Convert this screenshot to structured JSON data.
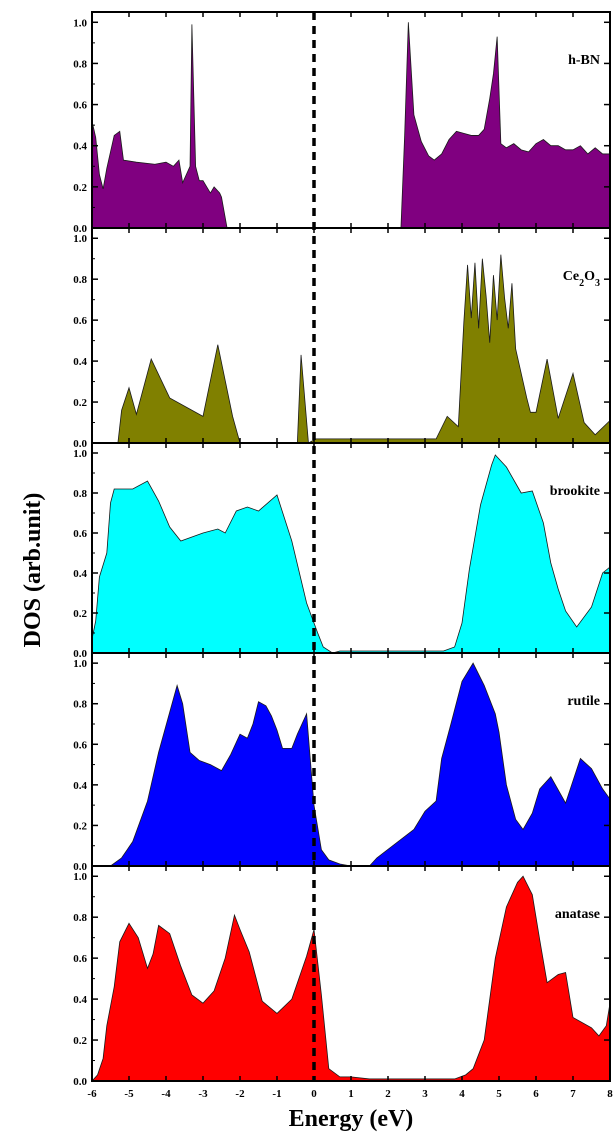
{
  "chart_data": {
    "type": "area",
    "xlabel": "Energy (eV)",
    "ylabel": "DOS (arb.unit)",
    "xlim": [
      -6,
      8
    ],
    "ylim": [
      0,
      1.05
    ],
    "xticks": [
      "-6",
      "-5",
      "-4",
      "-3",
      "-2",
      "-1",
      "0",
      "1",
      "2",
      "3",
      "4",
      "5",
      "6",
      "7",
      "8"
    ],
    "yticks": [
      "0.0",
      "0.2",
      "0.4",
      "0.6",
      "0.8",
      "1.0"
    ],
    "fermi_level": 0,
    "panels": [
      {
        "label": "h-BN",
        "label_base": "h-BN",
        "label_sub": "",
        "label_rest": "",
        "color": "#800080",
        "x": [
          -6.0,
          -5.9,
          -5.8,
          -5.7,
          -5.6,
          -5.4,
          -5.25,
          -5.15,
          -4.8,
          -4.3,
          -4.0,
          -3.8,
          -3.65,
          -3.55,
          -3.35,
          -3.3,
          -3.2,
          -3.1,
          -3.0,
          -2.8,
          -2.7,
          -2.55,
          -2.5,
          -2.35,
          2.35,
          2.45,
          2.55,
          2.7,
          2.9,
          3.1,
          3.25,
          3.45,
          3.65,
          3.85,
          4.05,
          4.25,
          4.45,
          4.6,
          4.75,
          4.85,
          4.95,
          5.05,
          5.2,
          5.4,
          5.6,
          5.8,
          6.0,
          6.2,
          6.4,
          6.6,
          6.8,
          7.0,
          7.2,
          7.4,
          7.6,
          7.8,
          8.0
        ],
        "y": [
          0.52,
          0.44,
          0.26,
          0.19,
          0.29,
          0.45,
          0.47,
          0.33,
          0.32,
          0.31,
          0.32,
          0.3,
          0.33,
          0.22,
          0.3,
          0.99,
          0.3,
          0.23,
          0.23,
          0.17,
          0.2,
          0.17,
          0.15,
          0.0,
          0.0,
          0.45,
          1.0,
          0.55,
          0.42,
          0.35,
          0.33,
          0.36,
          0.43,
          0.47,
          0.46,
          0.45,
          0.45,
          0.48,
          0.63,
          0.75,
          0.93,
          0.41,
          0.39,
          0.41,
          0.38,
          0.37,
          0.41,
          0.43,
          0.4,
          0.4,
          0.38,
          0.38,
          0.4,
          0.36,
          0.39,
          0.36,
          0.36
        ],
        "label_pos": "top-right"
      },
      {
        "label": "Ce2O3",
        "label_base": "Ce",
        "label_sub": "2",
        "label_rest": "O",
        "label_sub2": "3",
        "color": "#808000",
        "x": [
          -6.0,
          -5.3,
          -5.2,
          -5.0,
          -4.8,
          -4.4,
          -3.9,
          -3.0,
          -2.6,
          -2.2,
          -2.0,
          -0.45,
          -0.35,
          -0.15,
          0.05,
          3.3,
          3.6,
          3.9,
          4.05,
          4.15,
          4.25,
          4.35,
          4.45,
          4.55,
          4.65,
          4.75,
          4.85,
          4.95,
          5.05,
          5.15,
          5.25,
          5.35,
          5.45,
          5.55,
          5.65,
          5.75,
          5.85,
          6.0,
          6.3,
          6.6,
          7.0,
          7.3,
          7.6,
          8.0
        ],
        "y": [
          0.0,
          0.0,
          0.16,
          0.27,
          0.14,
          0.41,
          0.22,
          0.13,
          0.48,
          0.13,
          0.0,
          0.0,
          0.43,
          0.0,
          0.02,
          0.02,
          0.13,
          0.08,
          0.59,
          0.87,
          0.61,
          0.88,
          0.56,
          0.9,
          0.72,
          0.49,
          0.82,
          0.6,
          0.92,
          0.71,
          0.56,
          0.78,
          0.46,
          0.38,
          0.3,
          0.22,
          0.15,
          0.15,
          0.41,
          0.12,
          0.34,
          0.1,
          0.04,
          0.11
        ],
        "label_pos": "top-right"
      },
      {
        "label": "brookite",
        "label_base": "brookite",
        "label_sub": "",
        "label_rest": "",
        "color": "#00ffff",
        "x": [
          -6.0,
          -5.9,
          -5.8,
          -5.6,
          -5.5,
          -5.4,
          -5.2,
          -4.9,
          -4.5,
          -4.2,
          -3.9,
          -3.6,
          -3.0,
          -2.6,
          -2.4,
          -2.1,
          -1.8,
          -1.5,
          -1.0,
          -0.6,
          -0.2,
          0.1,
          0.25,
          0.5,
          0.7,
          1.0,
          1.5,
          2.0,
          2.5,
          3.0,
          3.5,
          3.8,
          4.0,
          4.2,
          4.5,
          4.8,
          4.9,
          5.2,
          5.6,
          5.9,
          6.2,
          6.4,
          6.6,
          6.8,
          7.1,
          7.5,
          7.8,
          8.0
        ],
        "y": [
          0.07,
          0.16,
          0.38,
          0.5,
          0.75,
          0.82,
          0.82,
          0.82,
          0.86,
          0.76,
          0.63,
          0.56,
          0.6,
          0.62,
          0.6,
          0.71,
          0.73,
          0.71,
          0.79,
          0.56,
          0.25,
          0.1,
          0.03,
          0.0,
          0.01,
          0.01,
          0.01,
          0.01,
          0.01,
          0.01,
          0.01,
          0.03,
          0.15,
          0.42,
          0.74,
          0.94,
          0.99,
          0.93,
          0.8,
          0.81,
          0.65,
          0.45,
          0.32,
          0.21,
          0.13,
          0.23,
          0.4,
          0.43
        ],
        "label_pos": "top-right"
      },
      {
        "label": "rutile",
        "label_base": "rutile",
        "label_sub": "",
        "label_rest": "",
        "color": "#0000ff",
        "x": [
          -6.0,
          -5.5,
          -5.2,
          -4.9,
          -4.5,
          -4.2,
          -3.7,
          -3.55,
          -3.35,
          -3.1,
          -2.8,
          -2.5,
          -2.25,
          -2.0,
          -1.8,
          -1.65,
          -1.5,
          -1.3,
          -1.15,
          -1.0,
          -0.85,
          -0.6,
          -0.45,
          -0.2,
          0.0,
          0.2,
          0.4,
          0.7,
          1.0,
          1.5,
          1.7,
          2.2,
          2.7,
          3.0,
          3.3,
          3.45,
          3.7,
          4.0,
          4.3,
          4.6,
          4.9,
          5.0,
          5.2,
          5.45,
          5.65,
          5.9,
          6.1,
          6.4,
          6.8,
          7.2,
          7.5,
          7.8,
          8.0
        ],
        "y": [
          0.0,
          0.0,
          0.04,
          0.12,
          0.32,
          0.56,
          0.89,
          0.8,
          0.56,
          0.52,
          0.5,
          0.47,
          0.55,
          0.65,
          0.63,
          0.7,
          0.81,
          0.79,
          0.74,
          0.67,
          0.58,
          0.58,
          0.65,
          0.75,
          0.3,
          0.08,
          0.03,
          0.01,
          0.0,
          0.0,
          0.04,
          0.11,
          0.18,
          0.27,
          0.32,
          0.53,
          0.7,
          0.91,
          1.0,
          0.89,
          0.75,
          0.66,
          0.4,
          0.23,
          0.18,
          0.26,
          0.38,
          0.44,
          0.31,
          0.53,
          0.48,
          0.38,
          0.33
        ],
        "label_pos": "top-right"
      },
      {
        "label": "anatase",
        "label_base": "anatase",
        "label_sub": "",
        "label_rest": "",
        "color": "#ff0000",
        "x": [
          -6.0,
          -5.85,
          -5.7,
          -5.6,
          -5.4,
          -5.25,
          -5.0,
          -4.75,
          -4.5,
          -4.35,
          -4.2,
          -3.9,
          -3.6,
          -3.3,
          -3.0,
          -2.7,
          -2.4,
          -2.15,
          -2.0,
          -1.75,
          -1.4,
          -1.0,
          -0.6,
          -0.2,
          0.0,
          0.2,
          0.4,
          0.7,
          1.0,
          1.5,
          2.0,
          2.5,
          3.0,
          3.5,
          3.8,
          4.1,
          4.3,
          4.6,
          4.9,
          5.2,
          5.5,
          5.65,
          5.9,
          6.1,
          6.3,
          6.6,
          6.8,
          7.0,
          7.5,
          7.7,
          7.9,
          8.0
        ],
        "y": [
          0.0,
          0.03,
          0.11,
          0.27,
          0.46,
          0.68,
          0.77,
          0.7,
          0.55,
          0.62,
          0.76,
          0.72,
          0.56,
          0.42,
          0.38,
          0.44,
          0.6,
          0.81,
          0.74,
          0.63,
          0.39,
          0.33,
          0.4,
          0.61,
          0.74,
          0.42,
          0.06,
          0.02,
          0.02,
          0.01,
          0.01,
          0.01,
          0.01,
          0.01,
          0.01,
          0.03,
          0.06,
          0.2,
          0.6,
          0.85,
          0.97,
          1.0,
          0.91,
          0.69,
          0.48,
          0.52,
          0.53,
          0.31,
          0.26,
          0.22,
          0.27,
          0.38
        ],
        "label_pos": "top-right"
      }
    ]
  }
}
